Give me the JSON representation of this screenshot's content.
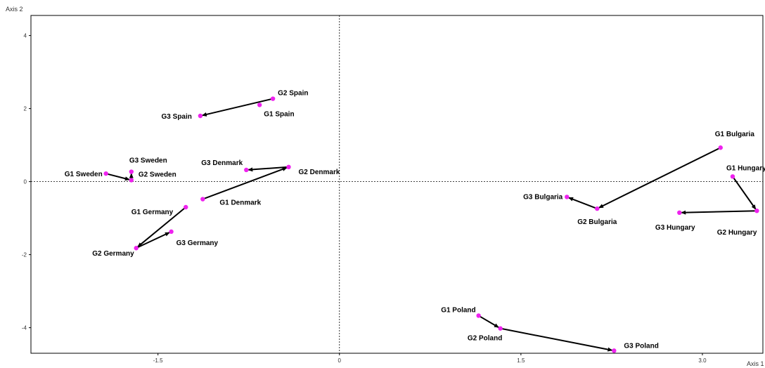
{
  "chart_data": {
    "type": "scatter",
    "title": "",
    "xlabel": "Axis 1",
    "ylabel": "Axis 2",
    "xlim": [
      -2.55,
      3.5
    ],
    "ylim": [
      -4.7,
      4.55
    ],
    "xticks": [
      -1.5,
      0,
      1.5,
      3.0
    ],
    "xtick_labels": [
      "-1.5",
      "0",
      "1.5",
      "3.0"
    ],
    "yticks": [
      4,
      2,
      0,
      -2,
      -4
    ],
    "ytick_labels": [
      "4",
      "2",
      "0",
      "-2",
      "-4"
    ],
    "grid": false,
    "zero_lines": true,
    "point_color": "#ee22ee",
    "arrow_color": "#000000",
    "points": [
      {
        "label": "G1 Spain",
        "x": -0.66,
        "y": 2.1
      },
      {
        "label": "G2 Spain",
        "x": -0.55,
        "y": 2.27
      },
      {
        "label": "G3 Spain",
        "x": -1.15,
        "y": 1.8
      },
      {
        "label": "G1 Sweden",
        "x": -1.93,
        "y": 0.22
      },
      {
        "label": "G2 Sweden",
        "x": -1.72,
        "y": 0.04
      },
      {
        "label": "G3 Sweden",
        "x": -1.72,
        "y": 0.27
      },
      {
        "label": "G1 Denmark",
        "x": -1.13,
        "y": -0.48
      },
      {
        "label": "G2 Denmark",
        "x": -0.42,
        "y": 0.4
      },
      {
        "label": "G3 Denmark",
        "x": -0.77,
        "y": 0.32
      },
      {
        "label": "G1 Germany",
        "x": -1.27,
        "y": -0.7
      },
      {
        "label": "G2 Germany",
        "x": -1.68,
        "y": -1.82
      },
      {
        "label": "G3 Germany",
        "x": -1.39,
        "y": -1.37
      },
      {
        "label": "G1 Bulgaria",
        "x": 3.15,
        "y": 0.93
      },
      {
        "label": "G2 Bulgaria",
        "x": 2.13,
        "y": -0.74
      },
      {
        "label": "G3 Bulgaria",
        "x": 1.88,
        "y": -0.42
      },
      {
        "label": "G1 Hungary",
        "x": 3.25,
        "y": 0.14
      },
      {
        "label": "G2 Hungary",
        "x": 3.45,
        "y": -0.8
      },
      {
        "label": "G3 Hungary",
        "x": 2.81,
        "y": -0.85
      },
      {
        "label": "G1 Poland",
        "x": 1.15,
        "y": -3.67
      },
      {
        "label": "G2 Poland",
        "x": 1.33,
        "y": -4.02
      },
      {
        "label": "G3 Poland",
        "x": 2.27,
        "y": -4.63
      }
    ],
    "arrows": [
      {
        "from": "G2 Spain",
        "to": "G3 Spain"
      },
      {
        "from": "G1 Sweden",
        "to": "G2 Sweden"
      },
      {
        "from": "G2 Sweden",
        "to": "G3 Sweden"
      },
      {
        "from": "G1 Denmark",
        "to": "G2 Denmark"
      },
      {
        "from": "G2 Denmark",
        "to": "G3 Denmark"
      },
      {
        "from": "G1 Germany",
        "to": "G2 Germany"
      },
      {
        "from": "G2 Germany",
        "to": "G3 Germany"
      },
      {
        "from": "G1 Bulgaria",
        "to": "G2 Bulgaria"
      },
      {
        "from": "G2 Bulgaria",
        "to": "G3 Bulgaria"
      },
      {
        "from": "G1 Hungary",
        "to": "G2 Hungary"
      },
      {
        "from": "G2 Hungary",
        "to": "G3 Hungary"
      },
      {
        "from": "G1 Poland",
        "to": "G2 Poland"
      },
      {
        "from": "G2 Poland",
        "to": "G3 Poland"
      }
    ]
  }
}
